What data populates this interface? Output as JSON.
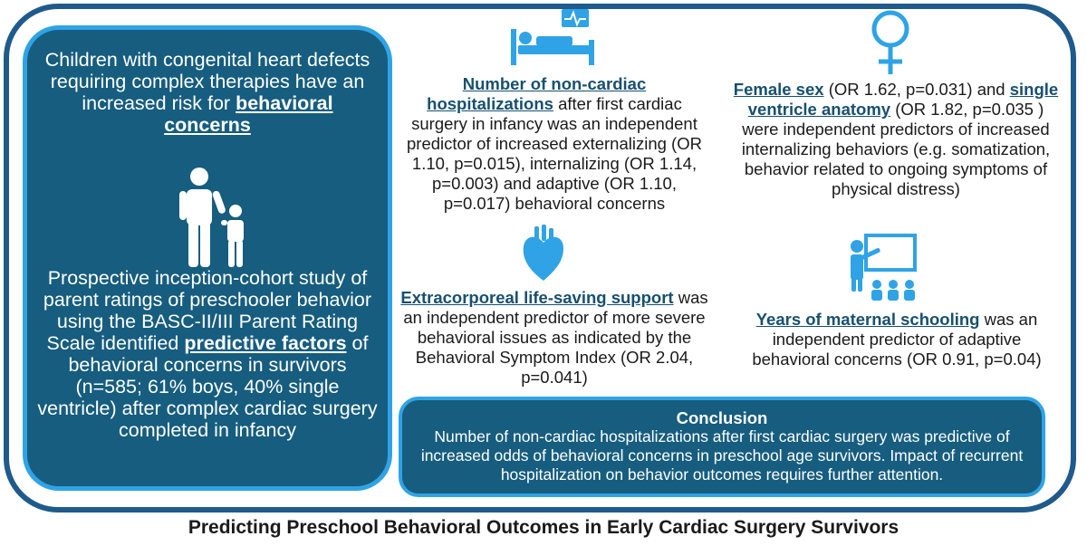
{
  "bottom_title": "Predicting Preschool Behavioral Outcomes in Early Cardiac Surgery Survivors",
  "left_panel": {
    "intro_text": "Children with congenital heart defects requiring complex therapies have an increased risk for",
    "intro_emphasis": "behavioral concerns",
    "study_text_before": "Prospective inception-cohort study of parent ratings of preschooler behavior using the BASC-II/III Parent Rating Scale identified",
    "study_emphasis": "predictive factors",
    "study_text_after": "of behavioral concerns  in survivors (n=585; 61% boys, 40% single ventricle) after complex cardiac surgery completed in infancy"
  },
  "findings": {
    "hospitalizations": {
      "emphasis": "Number of non-cardiac hospitalizations",
      "text": "after first cardiac surgery in infancy was an independent predictor of increased externalizing (OR 1.10, p=0.015), internalizing (OR 1.14, p=0.003) and adaptive (OR 1.10, p=0.017) behavioral concerns"
    },
    "female_sex": {
      "emphasis_1": "Female sex",
      "text_1": "(OR 1.62, p=0.031) and",
      "emphasis_2": "single ventricle anatomy",
      "text_2": "(OR 1.82, p=0.035 ) were independent predictors of increased internalizing behaviors (e.g. somatization, behavior related to ongoing symptoms of physical distress)"
    },
    "ecls": {
      "emphasis": "Extracorporeal life-saving support",
      "text": "was an independent predictor of more severe behavioral issues as indicated by the Behavioral Symptom Index (OR 2.04, p=0.041)"
    },
    "schooling": {
      "emphasis": "Years of maternal schooling",
      "text": "was an independent predictor of adaptive behavioral concerns (OR 0.91, p=0.04)"
    }
  },
  "conclusion": {
    "title": "Conclusion",
    "text": "Number of non-cardiac hospitalizations after first cardiac surgery was predictive of increased odds of behavioral concerns in preschool age survivors. Impact of recurrent hospitalization on behavior outcomes requires further attention."
  },
  "colors": {
    "frame": "#1f5a8c",
    "panel_fill": "#165d7f",
    "panel_border": "#2fa3e6",
    "icon": "#2fa3e6"
  },
  "icons": [
    "hospital-bed-monitor-icon",
    "female-symbol-icon",
    "parent-child-icon",
    "heart-icon",
    "teacher-classroom-icon"
  ]
}
